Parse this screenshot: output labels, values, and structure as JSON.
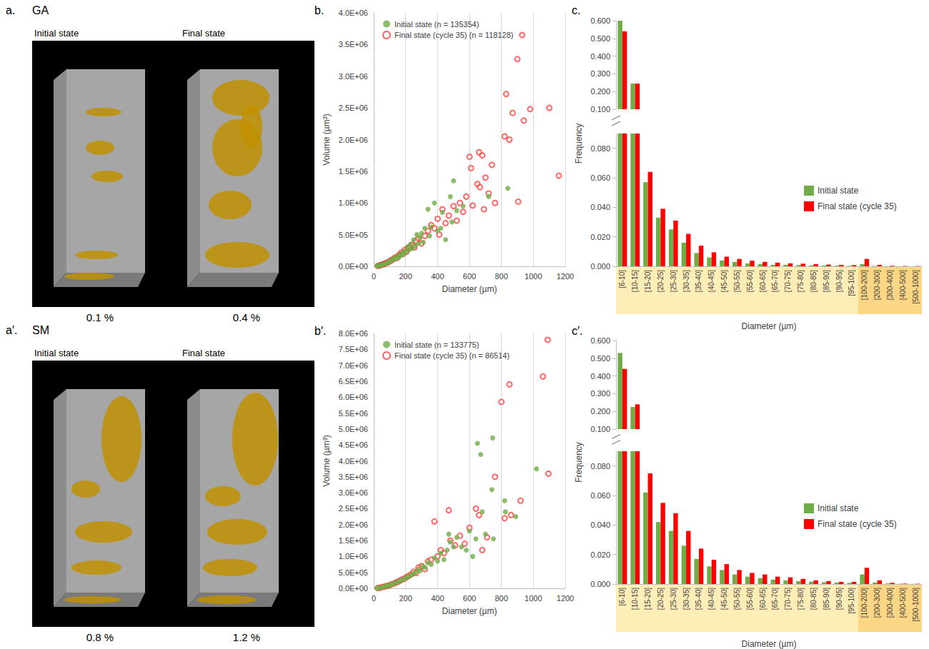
{
  "renderings": [
    {
      "letter": "a.",
      "title": "GA",
      "labels": [
        "Initial state",
        "Final state"
      ],
      "values": [
        "0.1 %",
        "0.4 %"
      ]
    },
    {
      "letter": "a′.",
      "title": "SM",
      "labels": [
        "Initial state",
        "Final state"
      ],
      "values": [
        "0.8 %",
        "1.2 %"
      ]
    }
  ],
  "chart_data": [
    {
      "panel": "b.",
      "type": "scatter",
      "xlabel": "Diameter (µm)",
      "ylabel": "Volume (µm³)",
      "xlim": [
        0,
        1200
      ],
      "xticks": [
        0,
        200,
        400,
        600,
        800,
        1000,
        1200
      ],
      "ylim": [
        0,
        4000000
      ],
      "yticks": [
        {
          "value": 0,
          "label": "0.0E+00"
        },
        {
          "value": 500000,
          "label": "5.0E+05"
        },
        {
          "value": 1000000,
          "label": "1.0E+06"
        },
        {
          "value": 1500000,
          "label": "1.5E+06"
        },
        {
          "value": 2000000,
          "label": "2.0E+06"
        },
        {
          "value": 2500000,
          "label": "2.5E+06"
        },
        {
          "value": 3000000,
          "label": "3.0E+06"
        },
        {
          "value": 3500000,
          "label": "3.5E+06"
        },
        {
          "value": 4000000,
          "label": "4.0E+06"
        }
      ],
      "grid": "x",
      "legend": "upper left",
      "series": [
        {
          "name": "Initial state (n = 135354)",
          "color": "#70ad47",
          "marker": "filled_circle",
          "x": [
            20,
            30,
            40,
            50,
            60,
            70,
            80,
            90,
            100,
            110,
            120,
            130,
            140,
            150,
            160,
            170,
            180,
            190,
            200,
            210,
            220,
            230,
            240,
            250,
            260,
            270,
            280,
            290,
            300,
            310,
            320,
            340,
            350,
            360,
            380,
            400,
            420,
            430,
            450,
            480,
            490,
            500,
            520,
            560,
            720,
            840
          ],
          "values": [
            5000,
            10000,
            15000,
            20000,
            30000,
            40000,
            50000,
            60000,
            80000,
            90000,
            110000,
            130000,
            120000,
            160000,
            150000,
            200000,
            180000,
            240000,
            220000,
            300000,
            260000,
            350000,
            280000,
            420000,
            320000,
            500000,
            360000,
            450000,
            520000,
            380000,
            600000,
            900000,
            480000,
            620000,
            1000000,
            560000,
            600000,
            850000,
            420000,
            1100000,
            700000,
            1350000,
            880000,
            950000,
            1100000,
            1230000
          ]
        },
        {
          "name": "Final state (cycle 35) (n = 118128)",
          "color": "#ff0000",
          "marker": "open_circle",
          "x": [
            25,
            35,
            45,
            55,
            65,
            75,
            85,
            95,
            105,
            115,
            125,
            135,
            145,
            155,
            165,
            175,
            185,
            195,
            205,
            215,
            225,
            240,
            255,
            265,
            280,
            300,
            320,
            340,
            360,
            380,
            400,
            410,
            430,
            450,
            470,
            500,
            520,
            540,
            560,
            580,
            600,
            610,
            620,
            650,
            660,
            665,
            680,
            690,
            700,
            720,
            740,
            760,
            820,
            830,
            850,
            870,
            900,
            905,
            930,
            940,
            980,
            1100,
            1160
          ],
          "values": [
            6000,
            12000,
            20000,
            30000,
            35000,
            50000,
            60000,
            70000,
            90000,
            100000,
            120000,
            140000,
            130000,
            170000,
            190000,
            220000,
            200000,
            260000,
            230000,
            290000,
            310000,
            340000,
            300000,
            400000,
            440000,
            360000,
            480000,
            560000,
            650000,
            600000,
            750000,
            500000,
            900000,
            680000,
            800000,
            950000,
            720000,
            1000000,
            860000,
            1100000,
            1730000,
            1550000,
            960000,
            1300000,
            1800000,
            1250000,
            1750000,
            900000,
            1400000,
            1150000,
            1600000,
            1000000,
            2050000,
            2720000,
            2000000,
            2420000,
            3270000,
            1020000,
            3650000,
            2300000,
            2480000,
            2500000,
            1430000
          ]
        }
      ]
    },
    {
      "panel": "c.",
      "type": "bar",
      "xlabel": "Diameter (µm)",
      "ylabel": "Frequency",
      "categories": [
        "[6-10]",
        "[10-15]",
        "[15-20]",
        "[20-25]",
        "[25-30]",
        "[30-35]",
        "[35-40]",
        "[40-45]",
        "[45-50]",
        "[50-55]",
        "[55-60]",
        "[60-65]",
        "[65-70]",
        "[70-75]",
        "[75-80]",
        "[80-85]",
        "[85-90]",
        "[90-95]",
        "[95-100]",
        "[100-200]",
        "[200-300]",
        "[300-400]",
        "[400-500]",
        "[500-1000]"
      ],
      "ylim": [
        0,
        0.6
      ],
      "ybreak": [
        0.09,
        0.1
      ],
      "yticks": [
        {
          "value": 0,
          "label": "0.000"
        },
        {
          "value": 0.02,
          "label": "0.020"
        },
        {
          "value": 0.04,
          "label": "0.040"
        },
        {
          "value": 0.06,
          "label": "0.060"
        },
        {
          "value": 0.08,
          "label": "0.080"
        },
        {
          "value": 0.1,
          "label": "0.100"
        },
        {
          "value": 0.2,
          "label": "0.200"
        },
        {
          "value": 0.3,
          "label": "0.300"
        },
        {
          "value": 0.4,
          "label": "0.400"
        },
        {
          "value": 0.5,
          "label": "0.500"
        },
        {
          "value": 0.6,
          "label": "0.600"
        }
      ],
      "grid": false,
      "legend": "right",
      "series": [
        {
          "name": "Initial state",
          "color": "#70ad47",
          "values": [
            0.6,
            0.245,
            0.057,
            0.033,
            0.025,
            0.016,
            0.009,
            0.006,
            0.004,
            0.003,
            0.002,
            0.0015,
            0.001,
            0.001,
            0.0008,
            0.0006,
            0.0005,
            0.0004,
            0.0003,
            0.0015,
            0.0002,
            0.0001,
            5e-05,
            5e-05
          ]
        },
        {
          "name": "Final state (cycle 35)",
          "color": "#ff0000",
          "values": [
            0.54,
            0.245,
            0.064,
            0.039,
            0.031,
            0.022,
            0.014,
            0.0095,
            0.0065,
            0.005,
            0.0038,
            0.003,
            0.0025,
            0.002,
            0.0018,
            0.0015,
            0.0012,
            0.001,
            0.0008,
            0.005,
            0.001,
            0.0004,
            0.0002,
            0.0002
          ]
        }
      ]
    },
    {
      "panel": "b′.",
      "type": "scatter",
      "xlabel": "Diameter (µm)",
      "ylabel": "Volume (µm³)",
      "xlim": [
        0,
        1200
      ],
      "xticks": [
        0,
        200,
        400,
        600,
        800,
        1000,
        1200
      ],
      "ylim": [
        0,
        8000000
      ],
      "yticks": [
        {
          "value": 0,
          "label": "0.0E+00"
        },
        {
          "value": 500000,
          "label": "5.0E+05"
        },
        {
          "value": 1000000,
          "label": "1.0E+06"
        },
        {
          "value": 1500000,
          "label": "1.5E+06"
        },
        {
          "value": 2000000,
          "label": "2.0E+06"
        },
        {
          "value": 2500000,
          "label": "2.5E+06"
        },
        {
          "value": 3000000,
          "label": "3.0E+06"
        },
        {
          "value": 3500000,
          "label": "3.5E+06"
        },
        {
          "value": 4000000,
          "label": "4.0E+06"
        },
        {
          "value": 4500000,
          "label": "4.5E+06"
        },
        {
          "value": 5000000,
          "label": "5.0E+06"
        },
        {
          "value": 5500000,
          "label": "5.5E+06"
        },
        {
          "value": 6000000,
          "label": "6.0E+06"
        },
        {
          "value": 6500000,
          "label": "6.5E+06"
        },
        {
          "value": 7000000,
          "label": "7.0E+06"
        },
        {
          "value": 7500000,
          "label": "7.5E+06"
        },
        {
          "value": 8000000,
          "label": "8.0E+06"
        }
      ],
      "grid": "x",
      "legend": "upper left",
      "series": [
        {
          "name": "Initial state (n = 133775)",
          "color": "#70ad47",
          "marker": "filled_circle",
          "x": [
            20,
            35,
            50,
            65,
            80,
            95,
            110,
            125,
            140,
            155,
            170,
            185,
            200,
            215,
            230,
            245,
            260,
            275,
            290,
            305,
            320,
            340,
            360,
            380,
            400,
            420,
            440,
            460,
            470,
            480,
            500,
            520,
            550,
            580,
            600,
            620,
            640,
            650,
            670,
            680,
            700,
            740,
            745,
            750,
            820,
            825,
            890,
            1020
          ],
          "values": [
            5000,
            15000,
            30000,
            50000,
            70000,
            90000,
            120000,
            150000,
            180000,
            200000,
            250000,
            280000,
            320000,
            360000,
            400000,
            450000,
            500000,
            600000,
            550000,
            700000,
            650000,
            800000,
            750000,
            950000,
            850000,
            1100000,
            900000,
            1200000,
            1700000,
            1450000,
            1300000,
            1600000,
            1300000,
            1200000,
            1800000,
            1000000,
            1550000,
            4550000,
            4200000,
            2400000,
            1700000,
            3100000,
            4720000,
            1550000,
            2750000,
            2400000,
            2250000,
            3750000
          ]
        },
        {
          "name": "Final state (cycle 35) (n = 86514)",
          "color": "#ff0000",
          "marker": "open_circle",
          "x": [
            25,
            40,
            55,
            70,
            85,
            100,
            115,
            130,
            145,
            160,
            175,
            190,
            205,
            220,
            235,
            250,
            265,
            280,
            300,
            320,
            340,
            360,
            380,
            400,
            420,
            440,
            470,
            480,
            510,
            540,
            570,
            600,
            640,
            660,
            680,
            710,
            760,
            800,
            820,
            850,
            860,
            920,
            1060,
            1090,
            1095
          ],
          "values": [
            8000,
            20000,
            40000,
            60000,
            80000,
            100000,
            130000,
            160000,
            190000,
            230000,
            270000,
            300000,
            350000,
            390000,
            440000,
            520000,
            480000,
            650000,
            700000,
            600000,
            850000,
            900000,
            2100000,
            1000000,
            1200000,
            1100000,
            2450000,
            1500000,
            1350000,
            1650000,
            1400000,
            1900000,
            2500000,
            2300000,
            1200000,
            1600000,
            3500000,
            5850000,
            2200000,
            6400000,
            2300000,
            2750000,
            6650000,
            7800000,
            3600000
          ]
        }
      ]
    },
    {
      "panel": "c′.",
      "type": "bar",
      "xlabel": "Diameter (µm)",
      "ylabel": "Frequency",
      "categories": [
        "[6-10]",
        "[10-15]",
        "[15-20]",
        "[20-25]",
        "[25-30]",
        "[30-35]",
        "[35-40]",
        "[40-45]",
        "[45-50]",
        "[50-55]",
        "[55-60]",
        "[60-65]",
        "[65-70]",
        "[70-75]",
        "[75-80]",
        "[80-85]",
        "[85-90]",
        "[90-95]",
        "[95-100]",
        "[100-200]",
        "[200-300]",
        "[300-400]",
        "[400-500]",
        "[500-1000]"
      ],
      "ylim": [
        0,
        0.6
      ],
      "ybreak": [
        0.09,
        0.1
      ],
      "yticks": [
        {
          "value": 0,
          "label": "0.000"
        },
        {
          "value": 0.02,
          "label": "0.020"
        },
        {
          "value": 0.04,
          "label": "0.040"
        },
        {
          "value": 0.06,
          "label": "0.060"
        },
        {
          "value": 0.08,
          "label": "0.080"
        },
        {
          "value": 0.1,
          "label": "0.100"
        },
        {
          "value": 0.2,
          "label": "0.200"
        },
        {
          "value": 0.3,
          "label": "0.300"
        },
        {
          "value": 0.4,
          "label": "0.400"
        },
        {
          "value": 0.5,
          "label": "0.500"
        },
        {
          "value": 0.6,
          "label": "0.600"
        }
      ],
      "grid": false,
      "legend": "right",
      "series": [
        {
          "name": "Initial state",
          "color": "#70ad47",
          "values": [
            0.53,
            0.225,
            0.062,
            0.042,
            0.036,
            0.026,
            0.017,
            0.012,
            0.0095,
            0.0065,
            0.005,
            0.004,
            0.003,
            0.0025,
            0.002,
            0.0015,
            0.0012,
            0.001,
            0.0008,
            0.0065,
            0.001,
            0.0004,
            0.0002,
            0.0001
          ]
        },
        {
          "name": "Final state (cycle 35)",
          "color": "#ff0000",
          "values": [
            0.44,
            0.24,
            0.075,
            0.055,
            0.048,
            0.036,
            0.024,
            0.0165,
            0.0135,
            0.0095,
            0.0075,
            0.0065,
            0.005,
            0.0045,
            0.0035,
            0.0025,
            0.002,
            0.0015,
            0.0015,
            0.011,
            0.0025,
            0.0008,
            0.0003,
            0.0002
          ]
        }
      ]
    }
  ]
}
